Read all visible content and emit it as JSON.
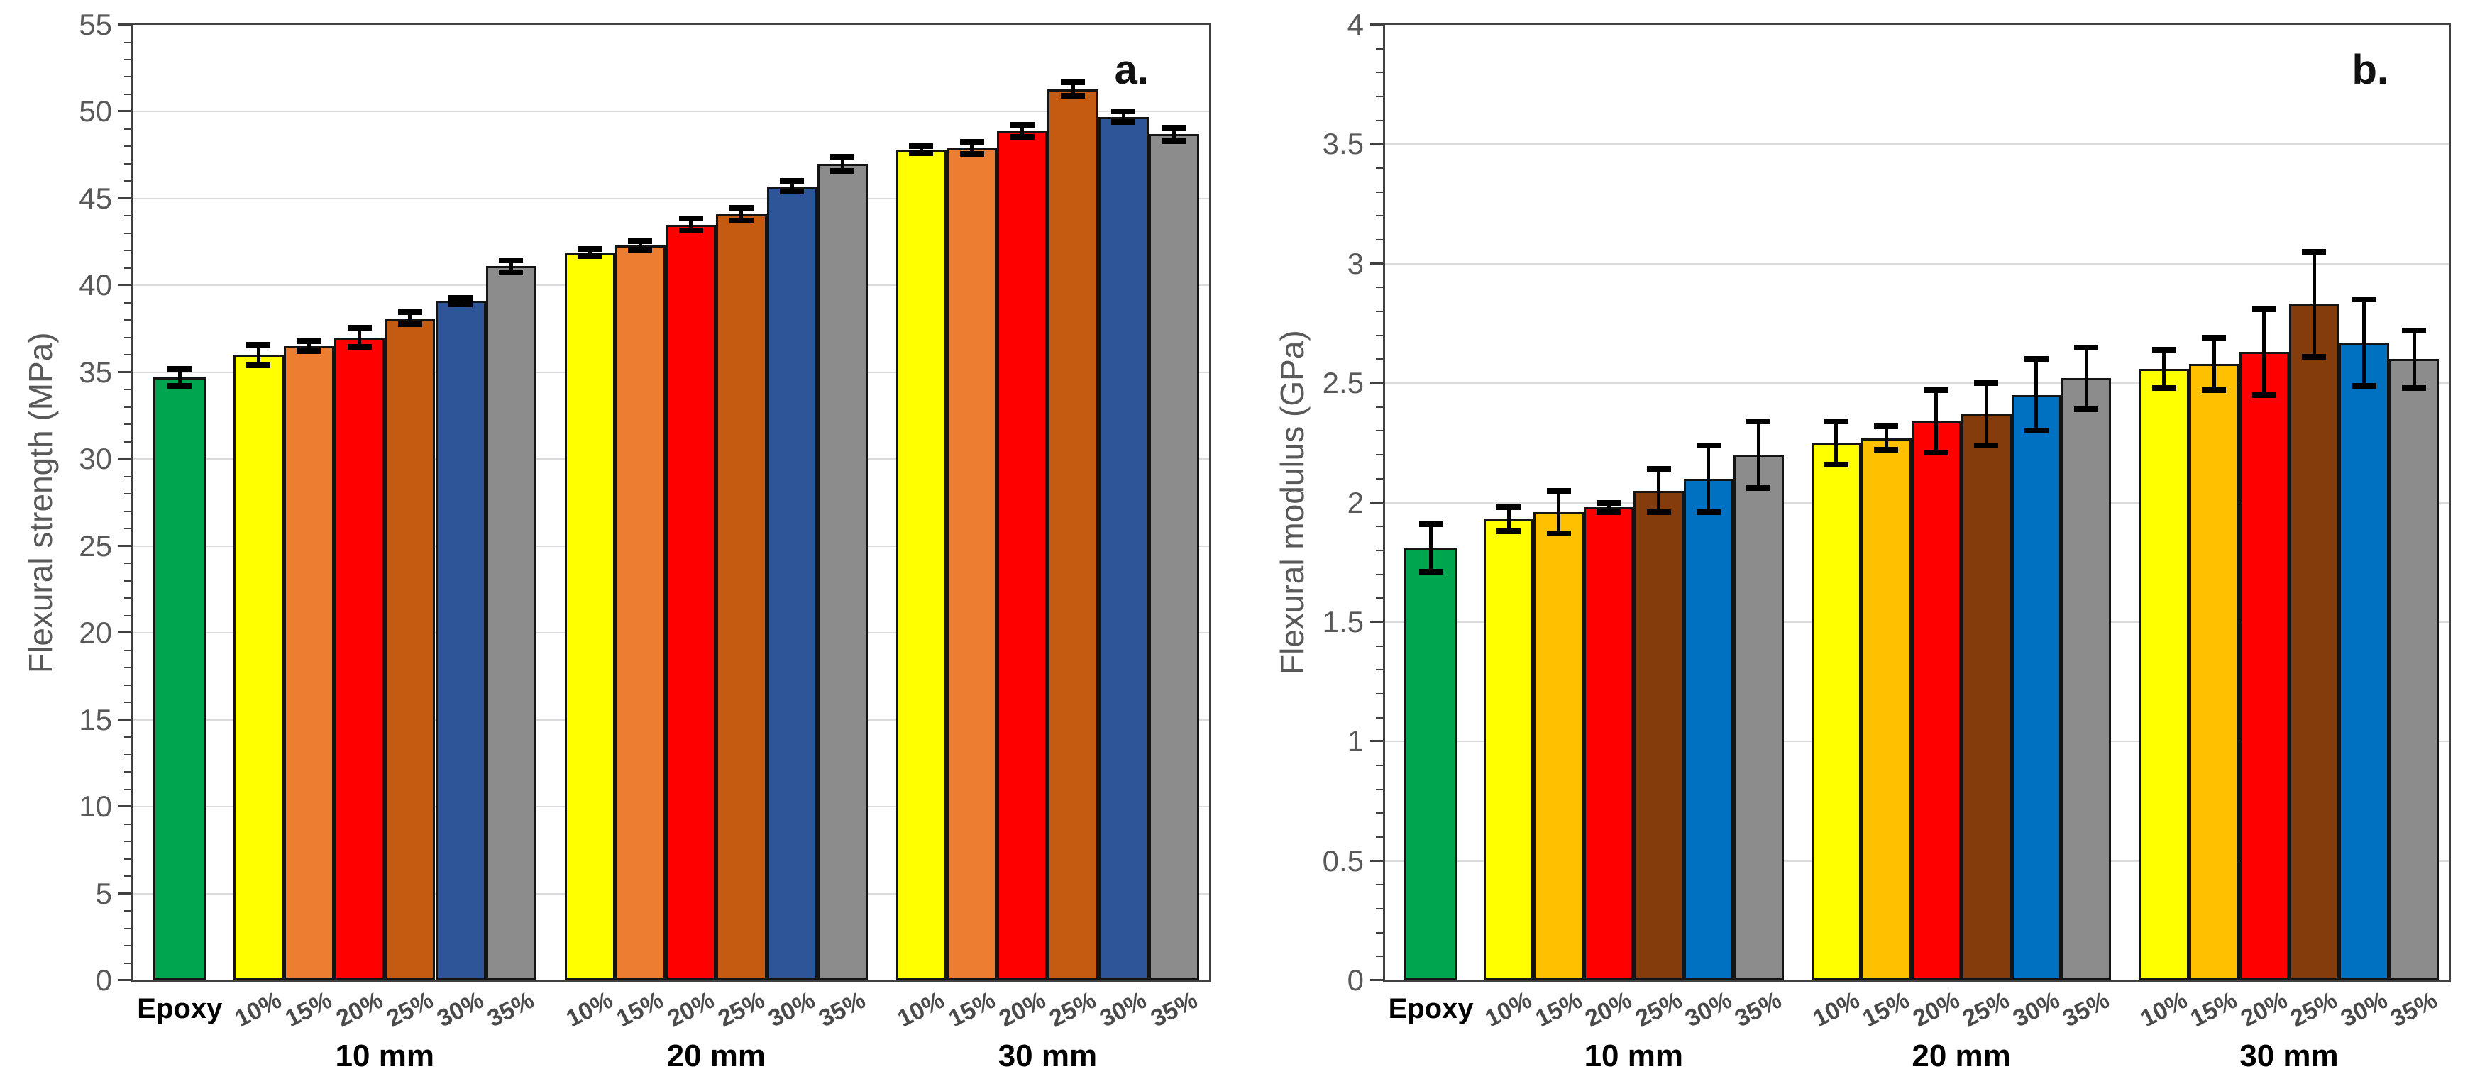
{
  "figure": {
    "background": "#FFFFFF",
    "panels": [
      "a.",
      "b."
    ]
  },
  "chart_data": [
    {
      "type": "bar",
      "panel_label": "a.",
      "title": "",
      "xlabel": "",
      "ylabel": "Flexural strength (MPa)",
      "ylim": [
        0,
        55
      ],
      "ystep": 5,
      "yminor": 1,
      "grid": true,
      "legend_position": "none",
      "baseline_series": {
        "label": "Epoxy",
        "value": 34.7,
        "error": 0.5,
        "color": "#00A550"
      },
      "categories": [
        "10%",
        "15%",
        "20%",
        "25%",
        "30%",
        "35%"
      ],
      "bar_colors": [
        "#FFFF00",
        "#ED7D31",
        "#FF0000",
        "#C55A11",
        "#2E5597",
        "#8C8C8C"
      ],
      "groups": [
        {
          "label": "10 mm",
          "values": [
            36.0,
            36.5,
            37.0,
            38.1,
            39.1,
            41.1
          ],
          "errors": [
            0.6,
            0.3,
            0.55,
            0.35,
            0.2,
            0.35
          ]
        },
        {
          "label": "20 mm",
          "values": [
            41.9,
            42.3,
            43.5,
            44.1,
            45.7,
            47.0
          ],
          "errors": [
            0.2,
            0.25,
            0.35,
            0.35,
            0.3,
            0.4
          ]
        },
        {
          "label": "30 mm",
          "values": [
            47.8,
            47.9,
            48.9,
            51.3,
            49.7,
            48.7
          ],
          "errors": [
            0.2,
            0.35,
            0.35,
            0.4,
            0.3,
            0.4
          ]
        }
      ]
    },
    {
      "type": "bar",
      "panel_label": "b.",
      "title": "",
      "xlabel": "",
      "ylabel": "Flexural modulus (GPa)",
      "ylim": [
        0,
        4
      ],
      "ystep": 0.5,
      "yminor": 0.1,
      "grid": true,
      "legend_position": "none",
      "baseline_series": {
        "label": "Epoxy",
        "value": 1.81,
        "error": 0.1,
        "color": "#00A550"
      },
      "categories": [
        "10%",
        "15%",
        "20%",
        "25%",
        "30%",
        "35%"
      ],
      "bar_colors": [
        "#FFFF00",
        "#FFC000",
        "#FF0000",
        "#843C0C",
        "#0070C0",
        "#8C8C8C"
      ],
      "groups": [
        {
          "label": "10 mm",
          "values": [
            1.93,
            1.96,
            1.98,
            2.05,
            2.1,
            2.2
          ],
          "errors": [
            0.05,
            0.09,
            0.02,
            0.09,
            0.14,
            0.14
          ]
        },
        {
          "label": "20 mm",
          "values": [
            2.25,
            2.27,
            2.34,
            2.37,
            2.45,
            2.52
          ],
          "errors": [
            0.09,
            0.05,
            0.13,
            0.13,
            0.15,
            0.13
          ]
        },
        {
          "label": "30 mm",
          "values": [
            2.56,
            2.58,
            2.63,
            2.83,
            2.67,
            2.6
          ],
          "errors": [
            0.08,
            0.11,
            0.18,
            0.22,
            0.18,
            0.12
          ]
        }
      ]
    }
  ],
  "styles": {
    "axis_color": "#404040",
    "grid_color": "#DBDBDB",
    "tick_label_color": "#595959",
    "axis_title_color": "#595959",
    "bar_border_color": "#141414",
    "error_bar_color": "#000000",
    "panel_letter_color": "#111111",
    "epoxy_label_color": "#000000",
    "pct_label_color": "#4A4A4A",
    "group_label_color": "#000000"
  }
}
